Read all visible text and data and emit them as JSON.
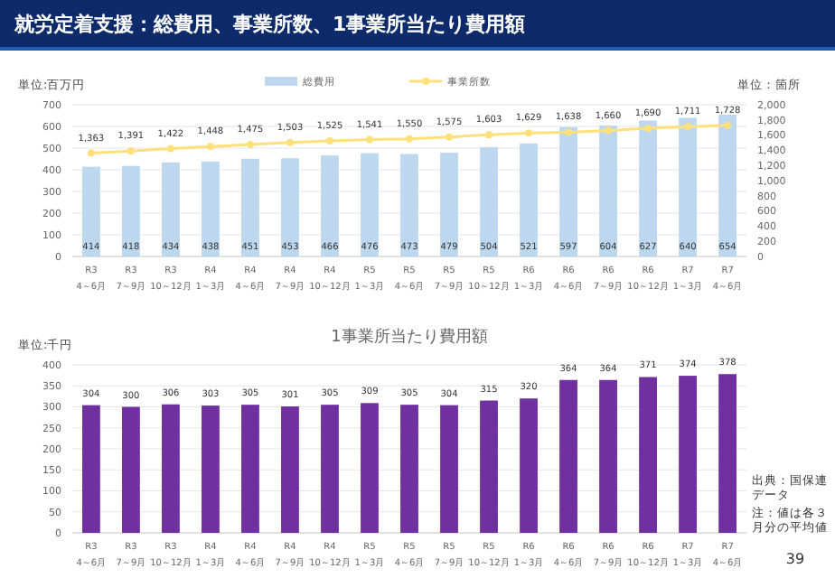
{
  "chart_data": [
    {
      "type": "bar",
      "title": "就労定着支援：総費用、事業所数、1事業所当たり費用額",
      "ylabel": "単位:百万円",
      "y2label": "単位：箇所",
      "categories": [
        "R3 4～6月",
        "R3 7～9月",
        "R3 10～12月",
        "R4 1～3月",
        "R4 4～6月",
        "R4 7～9月",
        "R4 10～12月",
        "R5 1～3月",
        "R5 4～6月",
        "R5 7～9月",
        "R5 10～12月",
        "R6 1～3月",
        "R6 4～6月",
        "R6 7～9月",
        "R6 10～12月",
        "R7 1～3月",
        "R7 4～6月"
      ],
      "series": [
        {
          "name": "総費用",
          "color": "#bdd7ee",
          "values": [
            414,
            418,
            434,
            438,
            451,
            453,
            466,
            476,
            473,
            479,
            504,
            521,
            597,
            604,
            627,
            640,
            654
          ]
        },
        {
          "name": "事業所数",
          "type": "line",
          "axis": "y2",
          "color": "#ffe07a",
          "marker": "circle",
          "values": [
            1363,
            1391,
            1422,
            1448,
            1475,
            1503,
            1525,
            1541,
            1550,
            1575,
            1603,
            1629,
            1638,
            1660,
            1690,
            1711,
            1728
          ],
          "value_labels": [
            "1,363",
            "1,391",
            "1,422",
            "1,448",
            "1,475",
            "1,503",
            "1,525",
            "1,541",
            "1,550",
            "1,575",
            "1,603",
            "1,629",
            "1,638",
            "1,660",
            "1,690",
            "1,711",
            "1,728"
          ]
        }
      ],
      "ylim": [
        0,
        700
      ],
      "yticks": [
        0,
        100,
        200,
        300,
        400,
        500,
        600,
        700
      ],
      "y2lim": [
        0,
        2000
      ],
      "y2ticks": [
        {
          "value": 0,
          "label": "0"
        },
        {
          "value": 200,
          "label": "200"
        },
        {
          "value": 400,
          "label": "400"
        },
        {
          "value": 600,
          "label": "600"
        },
        {
          "value": 800,
          "label": "800"
        },
        {
          "value": 1000,
          "label": "1,000"
        },
        {
          "value": 1200,
          "label": "1,200"
        },
        {
          "value": 1400,
          "label": "1,400"
        },
        {
          "value": 1600,
          "label": "1,600"
        },
        {
          "value": 1800,
          "label": "1,800"
        },
        {
          "value": 2000,
          "label": "2,000"
        }
      ],
      "grid": "y",
      "legend": "top",
      "data_labels": true
    },
    {
      "type": "bar",
      "title": "1事業所当たり費用額",
      "ylabel": "単位:千円",
      "categories": [
        "R3 4～6月",
        "R3 7～9月",
        "R3 10～12月",
        "R4 1～3月",
        "R4 4～6月",
        "R4 7～9月",
        "R4 10～12月",
        "R5 1～3月",
        "R5 4～6月",
        "R5 7～9月",
        "R5 10～12月",
        "R6 1～3月",
        "R6 4～6月",
        "R6 7～9月",
        "R6 10～12月",
        "R7 1～3月",
        "R7 4～6月"
      ],
      "values": [
        304,
        300,
        306,
        303,
        305,
        301,
        305,
        309,
        305,
        304,
        315,
        320,
        364,
        364,
        371,
        374,
        378
      ],
      "color": "#7030a0",
      "ylim": [
        0,
        400
      ],
      "yticks": [
        0,
        50,
        100,
        150,
        200,
        250,
        300,
        350,
        400
      ],
      "grid": "y",
      "data_labels": true,
      "annotations": [
        "出典：国保連データ",
        "注：値は各３月分の平均値",
        "39"
      ]
    }
  ]
}
